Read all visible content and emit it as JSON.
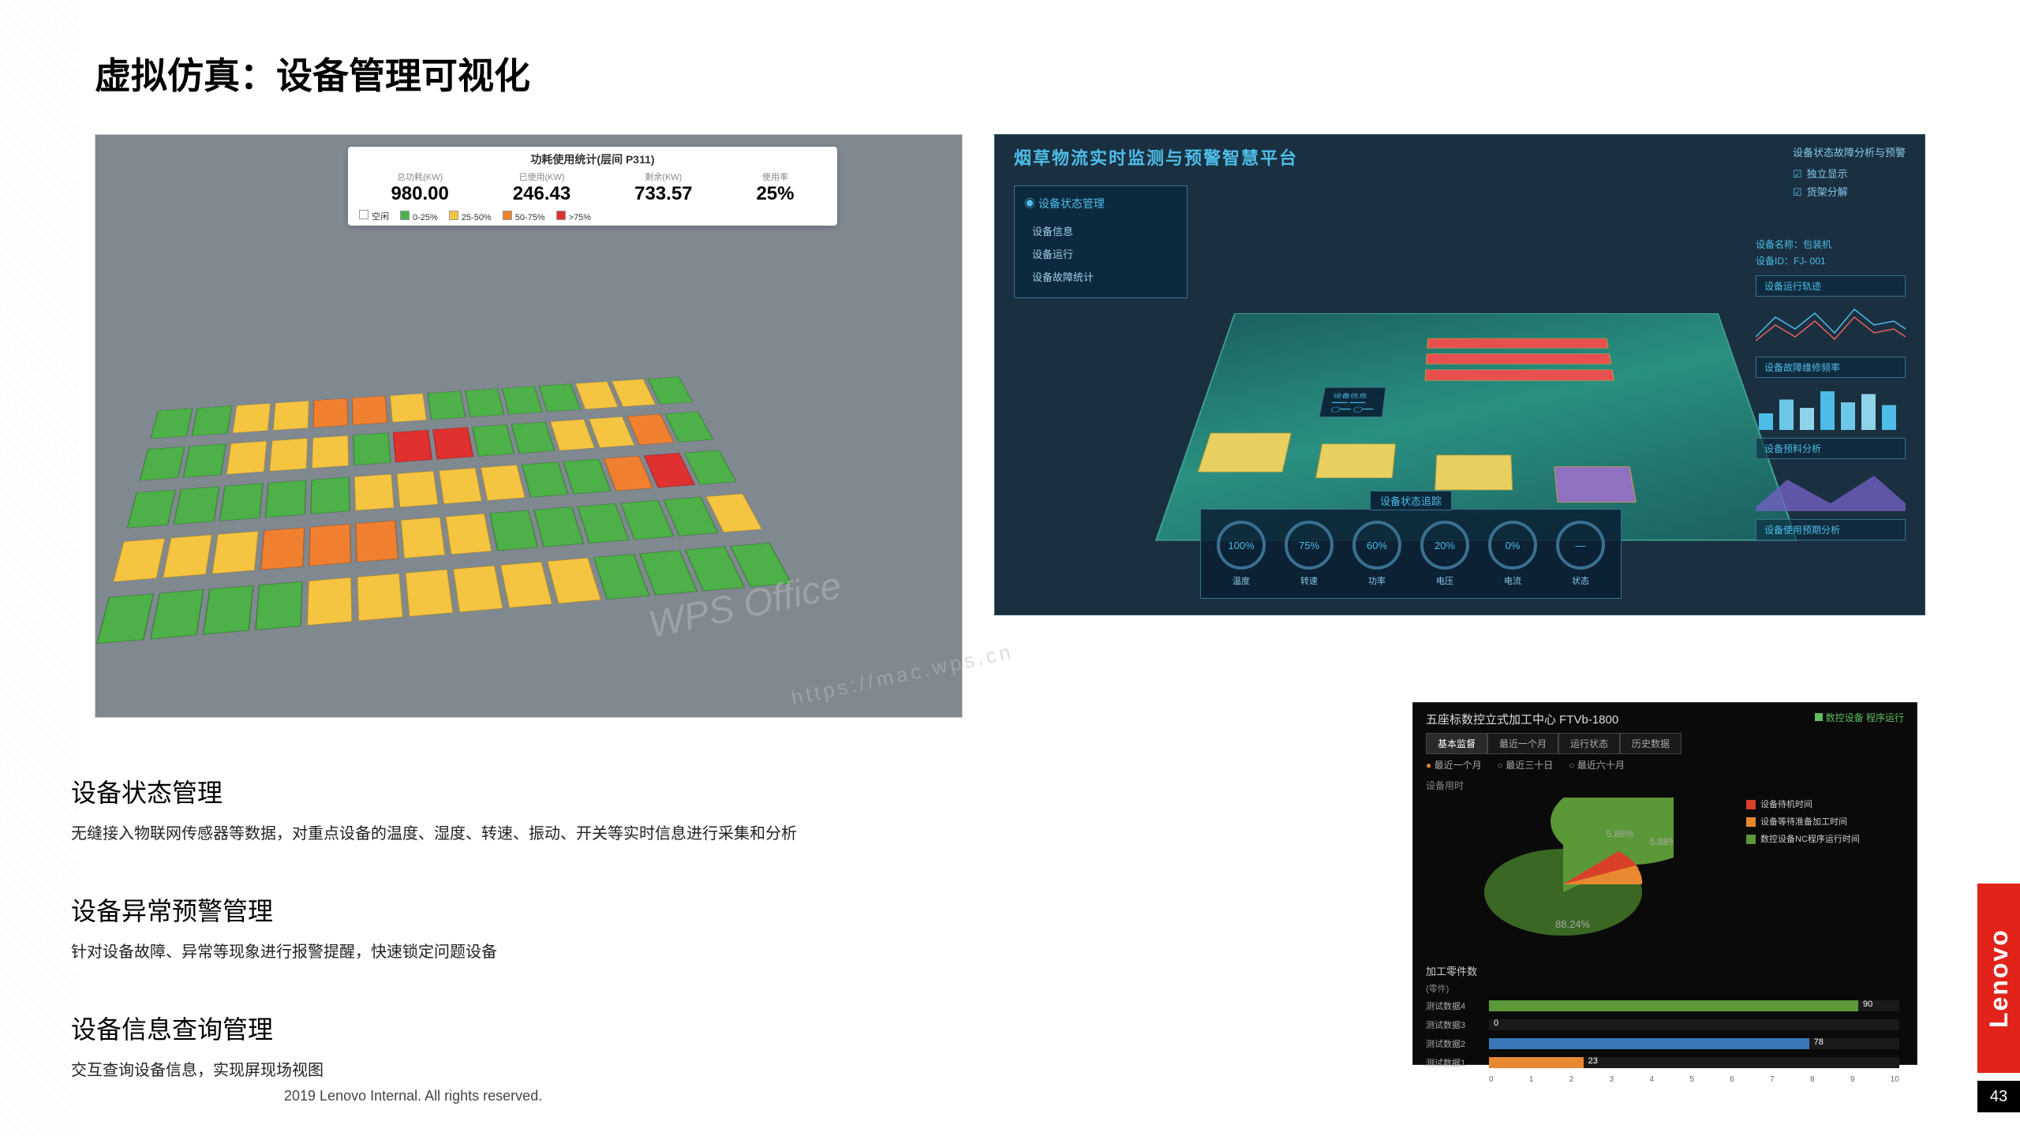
{
  "title": "虚拟仿真：设备管理可视化",
  "left_panel": {
    "stats_title": "功耗使用统计(层间 P311)",
    "stats": [
      {
        "label": "总功耗(KW)",
        "value": "980.00"
      },
      {
        "label": "已使用(KW)",
        "value": "246.43"
      },
      {
        "label": "剩余(KW)",
        "value": "733.57"
      },
      {
        "label": "使用率",
        "value": "25%"
      }
    ],
    "legend": [
      {
        "label": "空闲",
        "color": "#ffffff"
      },
      {
        "label": "0-25%",
        "color": "#4db048"
      },
      {
        "label": "25-50%",
        "color": "#f5c542"
      },
      {
        "label": "50-75%",
        "color": "#f08030"
      },
      {
        "label": ">75%",
        "color": "#e03030"
      }
    ],
    "rack_rows": [
      [
        "g",
        "g",
        "y",
        "y",
        "o",
        "o",
        "y",
        "g",
        "g",
        "g",
        "g",
        "y",
        "y",
        "g"
      ],
      [
        "g",
        "g",
        "y",
        "y",
        "y",
        "g",
        "r",
        "r",
        "g",
        "g",
        "y",
        "y",
        "o",
        "g"
      ],
      [
        "g",
        "g",
        "g",
        "g",
        "g",
        "y",
        "y",
        "y",
        "y",
        "g",
        "g",
        "o",
        "r",
        "g"
      ],
      [
        "y",
        "y",
        "y",
        "o",
        "o",
        "o",
        "y",
        "y",
        "g",
        "g",
        "g",
        "g",
        "g",
        "y"
      ],
      [
        "g",
        "g",
        "g",
        "g",
        "y",
        "y",
        "y",
        "y",
        "y",
        "y",
        "g",
        "g",
        "g",
        "g"
      ]
    ]
  },
  "right_panel": {
    "title": "烟草物流实时监测与预警智慧平台",
    "corner_title": "设备状态故障分析与预警",
    "corner_checks": [
      "独立显示",
      "货架分解"
    ],
    "sidebar_header": "设备状态管理",
    "sidebar_items": [
      "设备信息",
      "设备运行",
      "设备故障统计"
    ],
    "info": {
      "name_label": "设备名称：",
      "name": "包装机",
      "id_label": "设备ID：",
      "id": "FJ- 001"
    },
    "sections": [
      "设备运行轨迹",
      "设备故障维修频率",
      "设备预料分析",
      "设备使用预期分析"
    ],
    "gauges_title": "设备状态追踪",
    "gauges": [
      {
        "value": "100%",
        "label": "温度"
      },
      {
        "value": "75%",
        "label": "转速"
      },
      {
        "value": "60%",
        "label": "功率"
      },
      {
        "value": "20%",
        "label": "电压"
      },
      {
        "value": "0%",
        "label": "电流"
      },
      {
        "value": "—",
        "label": "状态"
      }
    ],
    "chart_bar_colors": [
      "#4dbde8",
      "#6dc8e8",
      "#8dd4e8",
      "#4dbde8",
      "#6dc8e8",
      "#8dd4e8",
      "#4dbde8"
    ],
    "chart_bars": [
      30,
      55,
      40,
      70,
      50,
      65,
      45
    ]
  },
  "bottom_panel": {
    "title": "五座标数控立式加工中心 FTVb-1800",
    "status": "数控设备    程序运行",
    "tabs": [
      "基本监督",
      "最近一个月",
      "运行状态",
      "历史数据"
    ],
    "active_tab": 0,
    "radios": [
      "最近一个月",
      "最近三十日",
      "最近六十月"
    ],
    "sel_radio": 0,
    "sublabel": "设备用时",
    "pie": {
      "slices": [
        {
          "pct": 88.24,
          "color": "#5a9838",
          "label_pos": "bottom"
        },
        {
          "pct": 5.88,
          "color": "#d84028",
          "label_pos": "top"
        },
        {
          "pct": 5.88,
          "color": "#e88830",
          "label_pos": "top"
        }
      ],
      "legend": [
        {
          "label": "设备待机时间",
          "color": "#d84028"
        },
        {
          "label": "设备等待准备加工时间",
          "color": "#e88830"
        },
        {
          "label": "数控设备NC程序运行时间",
          "color": "#5a9838"
        }
      ]
    },
    "bars_title": "加工零件数",
    "bars_sub": "(零件)",
    "bars": [
      {
        "label": "测试数据4",
        "value": 90,
        "color": "#5a9838"
      },
      {
        "label": "测试数据3",
        "value": 0,
        "color": "#3878b8"
      },
      {
        "label": "测试数据2",
        "value": 78,
        "color": "#3878b8"
      },
      {
        "label": "测试数据1",
        "value": 23,
        "color": "#e88830"
      }
    ],
    "bars_max": 100,
    "axis_ticks": [
      "0",
      "1",
      "2",
      "3",
      "4",
      "5",
      "6",
      "7",
      "8",
      "9",
      "10"
    ]
  },
  "text_blocks": [
    {
      "h": "设备状态管理",
      "p": "无缝接入物联网传感器等数据，对重点设备的温度、湿度、转速、振动、开关等实时信息进行采集和分析"
    },
    {
      "h": "设备异常预警管理",
      "p": "针对设备故障、异常等现象进行报警提醒，快速锁定问题设备"
    },
    {
      "h": "设备信息查询管理",
      "p": "交互查询设备信息，实现屏现场视图"
    }
  ],
  "footer_overlap": "2019 Lenovo Internal. All rights reserved.",
  "brand": "Lenovo",
  "page_number": "43",
  "watermark": "WPS Office",
  "watermark2": "https://mac.wps.cn"
}
